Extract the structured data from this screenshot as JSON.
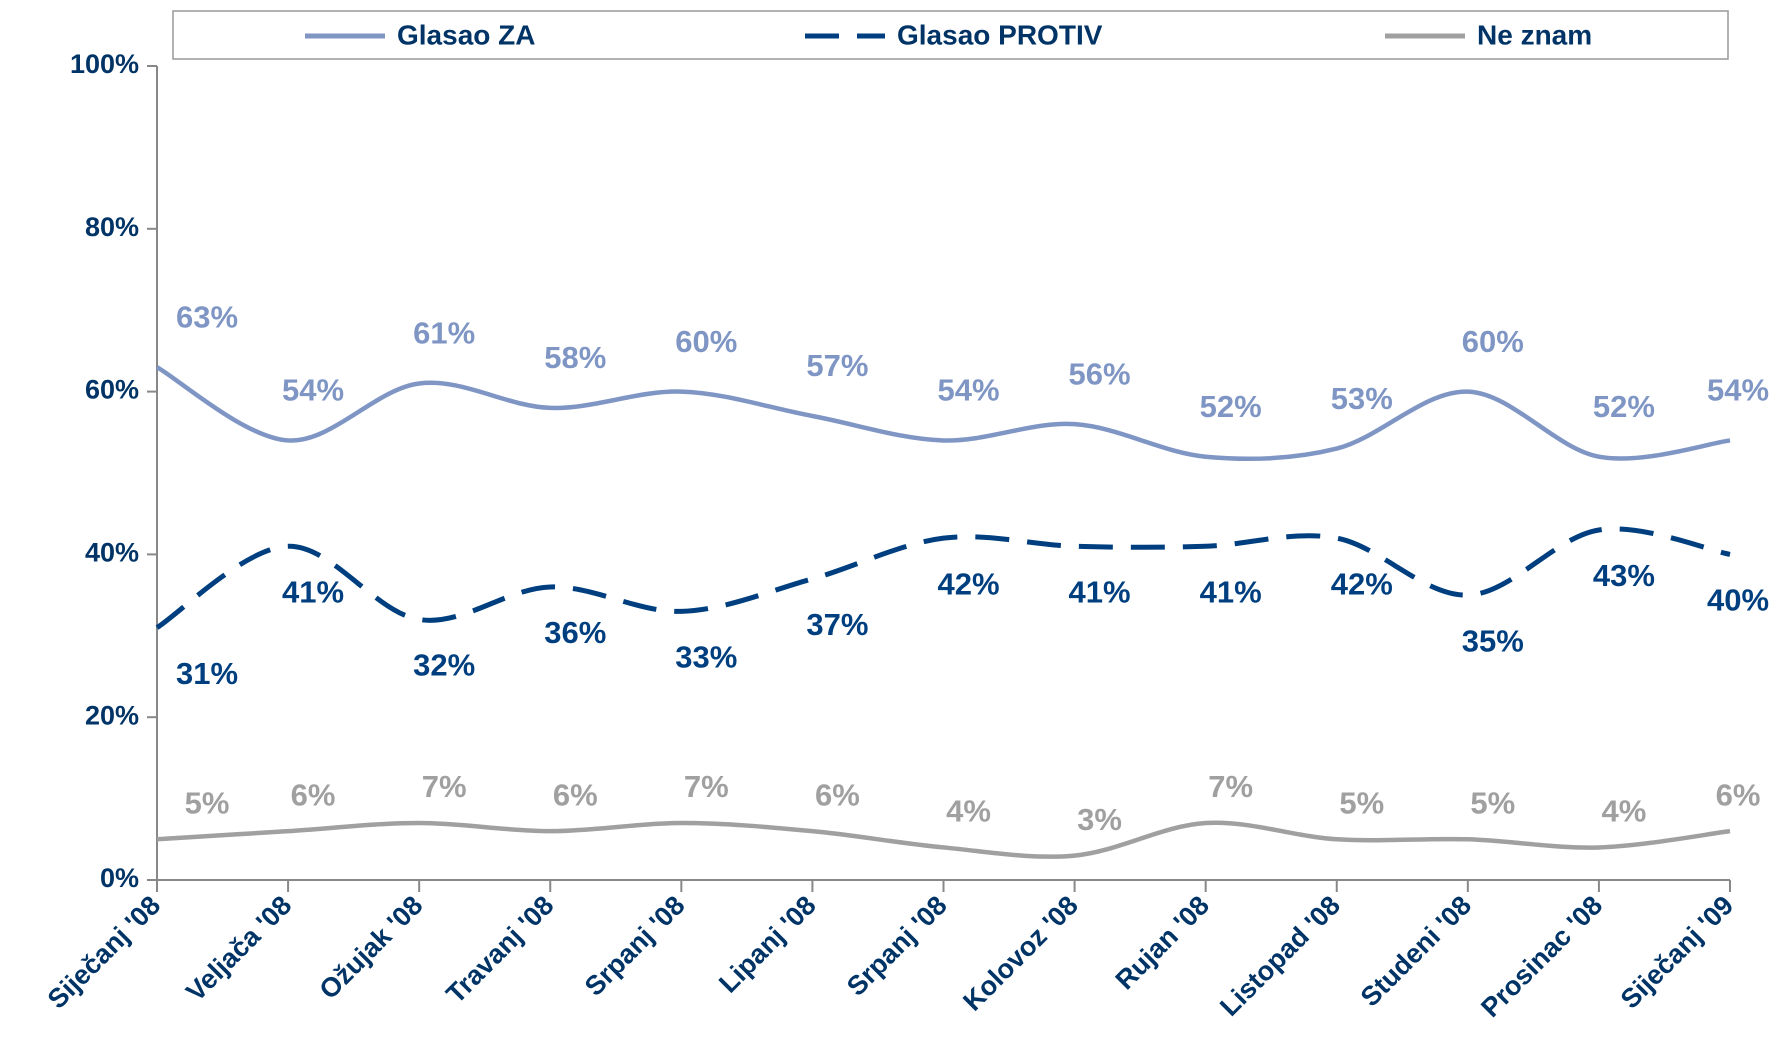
{
  "chart_data": {
    "type": "line",
    "categories": [
      "Siječanj '08",
      "Veljača '08",
      "Ožujak '08",
      "Travanj '08",
      "Srpanj '08",
      "Lipanj '08",
      "Srpanj '08",
      "Kolovoz '08",
      "Rujan '08",
      "Listopad '08",
      "Studeni '08",
      "Prosinac '08",
      "Siječanj '09"
    ],
    "series": [
      {
        "name": "Glasao ZA",
        "color": "#7f96c5",
        "dash": false,
        "values": [
          63,
          54,
          61,
          58,
          60,
          57,
          54,
          56,
          52,
          53,
          60,
          52,
          54
        ],
        "value_labels": [
          "63%",
          "54%",
          "61%",
          "58%",
          "60%",
          "57%",
          "54%",
          "56%",
          "52%",
          "53%",
          "60%",
          "52%",
          "54%"
        ]
      },
      {
        "name": "Glasao PROTIV",
        "color": "#003f7f",
        "dash": true,
        "values": [
          31,
          41,
          32,
          36,
          33,
          37,
          42,
          41,
          41,
          42,
          35,
          43,
          40
        ],
        "value_labels": [
          "31%",
          "41%",
          "32%",
          "36%",
          "33%",
          "37%",
          "42%",
          "41%",
          "41%",
          "42%",
          "35%",
          "43%",
          "40%"
        ]
      },
      {
        "name": "Ne znam",
        "color": "#a0a0a0",
        "dash": false,
        "values": [
          5,
          6,
          7,
          6,
          7,
          6,
          4,
          3,
          7,
          5,
          5,
          4,
          6
        ],
        "value_labels": [
          "5%",
          "6%",
          "7%",
          "6%",
          "7%",
          "6%",
          "4%",
          "3%",
          "7%",
          "5%",
          "5%",
          "4%",
          "6%"
        ]
      }
    ],
    "ylim": [
      0,
      100
    ],
    "yticks": [
      {
        "value": 0,
        "label": "0%"
      },
      {
        "value": 20,
        "label": "20%"
      },
      {
        "value": 40,
        "label": "40%"
      },
      {
        "value": 60,
        "label": "60%"
      },
      {
        "value": 80,
        "label": "80%"
      },
      {
        "value": 100,
        "label": "100%"
      }
    ],
    "legend": "top"
  }
}
